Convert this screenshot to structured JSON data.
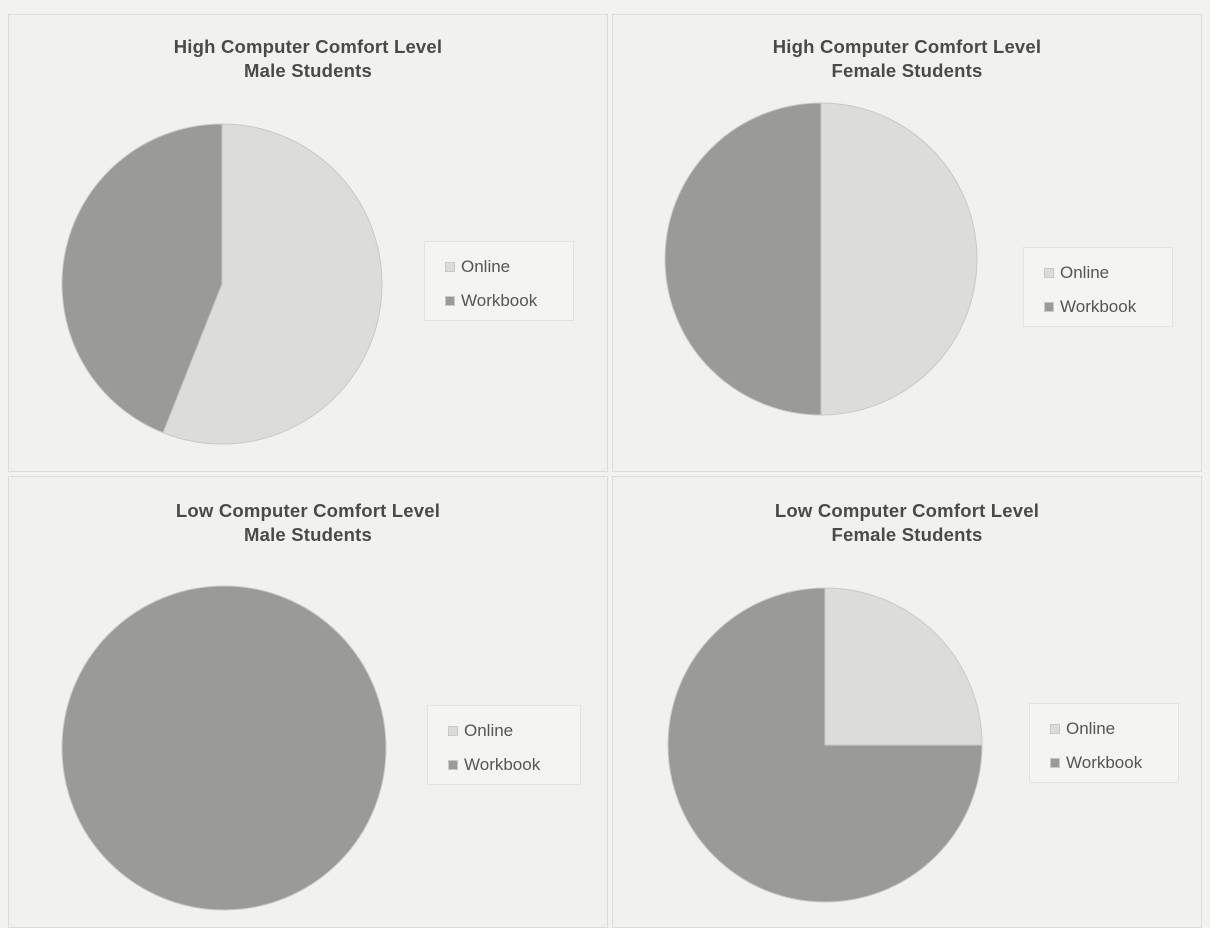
{
  "colors": {
    "online": "#dcdcda",
    "workbook": "#9a9a98",
    "edge": "#c9c9c7"
  },
  "chart_data": [
    {
      "type": "pie",
      "title": "High Computer Comfort Level",
      "subtitle": "Male Students",
      "categories": [
        "Online",
        "Workbook"
      ],
      "values": [
        56,
        44
      ],
      "start_angle": 0,
      "direction": "clockwise",
      "legend": "right"
    },
    {
      "type": "pie",
      "title": "High Computer Comfort Level",
      "subtitle": "Female Students",
      "categories": [
        "Online",
        "Workbook"
      ],
      "values": [
        50,
        50
      ],
      "start_angle": 0,
      "direction": "clockwise",
      "legend": "right"
    },
    {
      "type": "pie",
      "title": "Low Computer Comfort Level",
      "subtitle": "Male Students",
      "categories": [
        "Online",
        "Workbook"
      ],
      "values": [
        0,
        100
      ],
      "start_angle": 0,
      "direction": "clockwise",
      "legend": "right"
    },
    {
      "type": "pie",
      "title": "Low Computer Comfort Level",
      "subtitle": "Female Students",
      "categories": [
        "Online",
        "Workbook"
      ],
      "values": [
        25,
        75
      ],
      "start_angle": 0,
      "direction": "clockwise",
      "legend": "right"
    }
  ]
}
